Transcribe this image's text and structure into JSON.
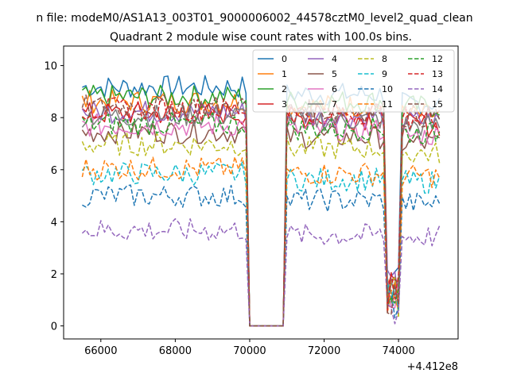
{
  "figure": {
    "suptitle": "n file: modeM0/AS1A13_003T01_9000006002_44578cztM0_level2_quad_clean",
    "title": "Quadrant 2 module wise count rates with 100.0s bins.",
    "offset_text": "+4.412e8"
  },
  "chart_data": {
    "type": "line",
    "title": "Quadrant 2 module wise count rates with 100.0s bins.",
    "xlabel": "",
    "ylabel": "",
    "x_offset": 441200000,
    "xlim": [
      65000,
      75600
    ],
    "ylim": [
      -0.5,
      10.75
    ],
    "xticks": [
      66000,
      68000,
      70000,
      72000,
      74000
    ],
    "yticks": [
      0,
      2,
      4,
      6,
      8,
      10
    ],
    "grid": false,
    "legend": {
      "placement": "top-right",
      "columns": 4
    },
    "x_segments": [
      {
        "start": 65500,
        "end": 69900
      },
      {
        "start": 70000,
        "end": 70900
      },
      {
        "start": 71000,
        "end": 73600
      },
      {
        "start": 73700,
        "end": 74000
      },
      {
        "start": 74100,
        "end": 75100
      }
    ],
    "series": [
      {
        "name": "0",
        "color": "#1f77b4",
        "dash": "solid",
        "level": 9.0,
        "seg_d": [
          9.7,
          0,
          8.6,
          1.5,
          7.3
        ]
      },
      {
        "name": "1",
        "color": "#ff7f0e",
        "dash": "solid",
        "level": 8.5,
        "seg_d": [
          9.0,
          0,
          8.3,
          1.2,
          6.9
        ]
      },
      {
        "name": "2",
        "color": "#2ca02c",
        "dash": "solid",
        "level": 8.7,
        "seg_d": [
          9.1,
          0,
          8.4,
          1.3,
          7.6
        ]
      },
      {
        "name": "3",
        "color": "#d62728",
        "dash": "solid",
        "level": 8.0,
        "seg_d": [
          8.6,
          0,
          7.9,
          1.2,
          6.8
        ]
      },
      {
        "name": "4",
        "color": "#9467bd",
        "dash": "solid",
        "level": 8.1,
        "seg_d": [
          8.6,
          0,
          7.9,
          1.4,
          7.2
        ]
      },
      {
        "name": "5",
        "color": "#8c564b",
        "dash": "solid",
        "level": 7.2,
        "seg_d": [
          8.2,
          0,
          7.4,
          1.1,
          6.4
        ]
      },
      {
        "name": "6",
        "color": "#e377c2",
        "dash": "solid",
        "level": 7.5,
        "seg_d": [
          8.3,
          0,
          7.6,
          1.3,
          6.7
        ]
      },
      {
        "name": "7",
        "color": "#7f7f7f",
        "dash": "solid",
        "level": 7.9,
        "seg_d": [
          8.6,
          0,
          8.0,
          1.3,
          7.0
        ]
      },
      {
        "name": "8",
        "color": "#bcbd22",
        "dash": "dashed",
        "level": 6.8,
        "seg_d": [
          7.5,
          0,
          6.9,
          1.1,
          6.1
        ]
      },
      {
        "name": "9",
        "color": "#17becf",
        "dash": "dashed",
        "level": 5.6,
        "seg_d": [
          6.6,
          0,
          5.7,
          1.0,
          5.3
        ]
      },
      {
        "name": "10",
        "color": "#1f77b4",
        "dash": "dashed",
        "level": 4.8,
        "seg_d": [
          5.6,
          0,
          4.9,
          0.9,
          4.4
        ]
      },
      {
        "name": "11",
        "color": "#ff7f0e",
        "dash": "dashed",
        "level": 5.8,
        "seg_d": [
          6.8,
          0,
          6.0,
          1.0,
          5.6
        ]
      },
      {
        "name": "12",
        "color": "#2ca02c",
        "dash": "dashed",
        "level": 7.6,
        "seg_d": [
          8.2,
          0,
          7.5,
          1.2,
          6.8
        ]
      },
      {
        "name": "13",
        "color": "#d62728",
        "dash": "dashed",
        "level": 8.2,
        "seg_d": [
          8.7,
          0,
          8.2,
          1.3,
          7.5
        ]
      },
      {
        "name": "14",
        "color": "#9467bd",
        "dash": "dashed",
        "level": 3.5,
        "seg_d": [
          4.2,
          0,
          3.4,
          0.7,
          3.2
        ]
      },
      {
        "name": "15",
        "color": "#8c564b",
        "dash": "dashed",
        "level": 8.3,
        "seg_d": [
          8.8,
          0,
          8.2,
          1.2,
          7.3
        ]
      }
    ]
  }
}
